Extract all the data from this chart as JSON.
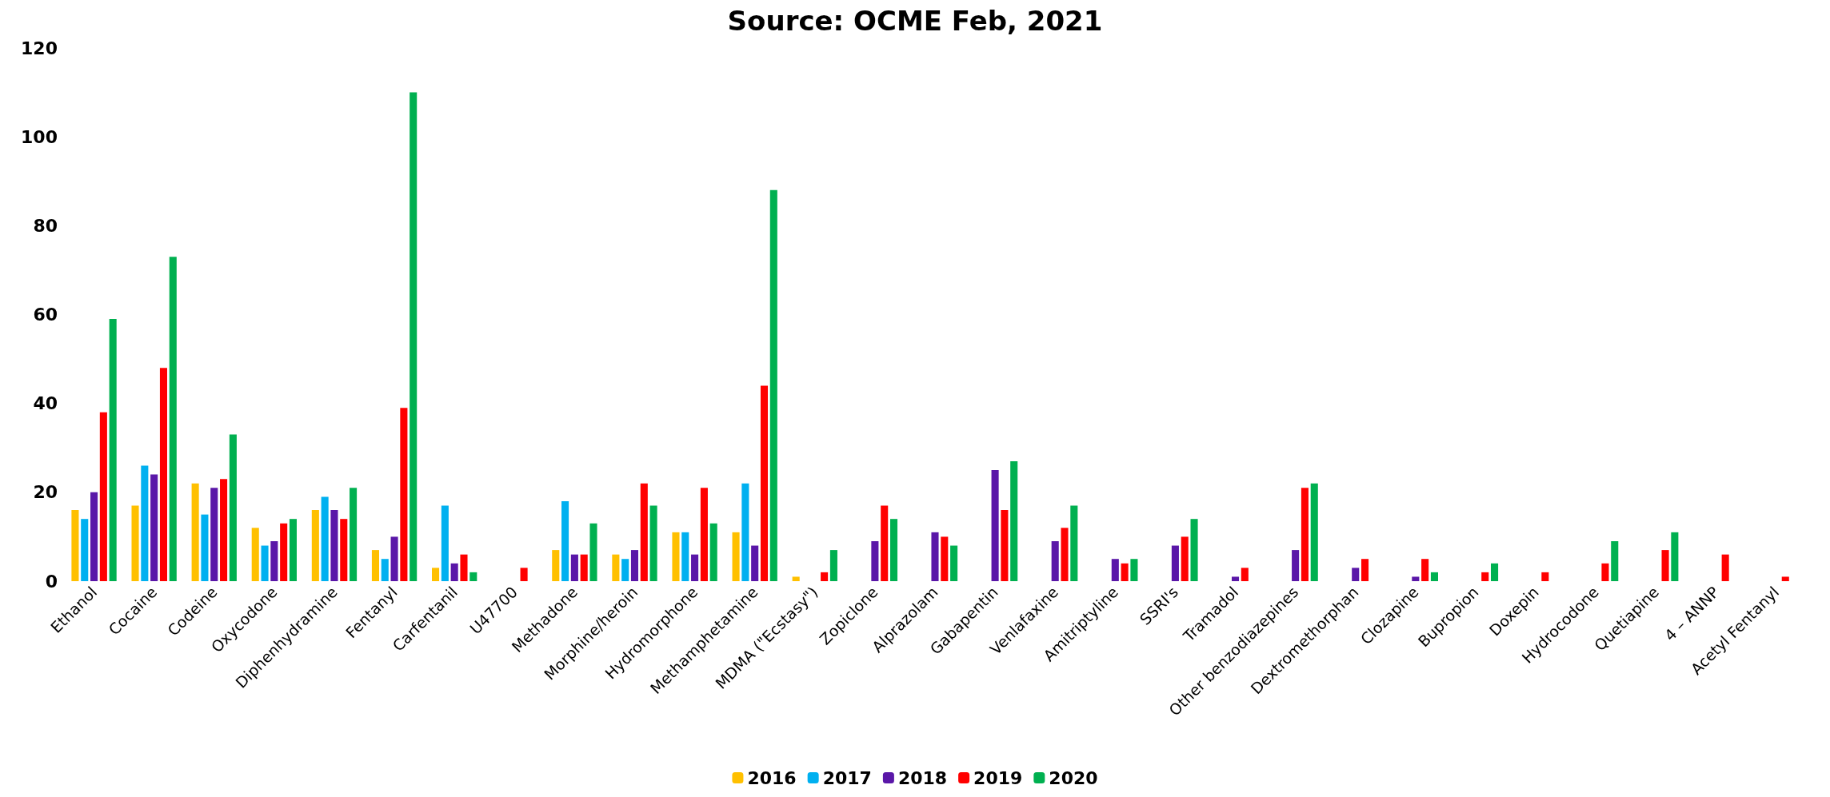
{
  "chart_data": {
    "type": "bar",
    "title": "Source: OCME Feb, 2021",
    "categories": [
      "Ethanol",
      "Cocaine",
      "Codeine",
      "Oxycodone",
      "Diphenhydramine",
      "Fentanyl",
      "Carfentanil",
      "U47700",
      "Methadone",
      "Morphine/heroin",
      "Hydromorphone",
      "Methamphetamine",
      "MDMA (\"Ecstasy\")",
      "Zopiclone",
      "Alprazolam",
      "Gabapentin",
      "Venlafaxine",
      "Amitriptyline",
      "SSRI's",
      "Tramadol",
      "Other benzodiazepines",
      "Dextromethorphan",
      "Clozapine",
      "Bupropion",
      "Doxepin",
      "Hydrocodone",
      "Quetiapine",
      "4 – ANNP",
      "Acetyl Fentanyl"
    ],
    "series": [
      {
        "name": "2016",
        "color": "#ffc000",
        "values": [
          16,
          17,
          22,
          12,
          16,
          7,
          3,
          null,
          7,
          6,
          11,
          11,
          1,
          null,
          null,
          null,
          null,
          null,
          null,
          null,
          null,
          null,
          null,
          null,
          null,
          null,
          null,
          null,
          null
        ]
      },
      {
        "name": "2017",
        "color": "#00b0f0",
        "values": [
          14,
          26,
          15,
          8,
          19,
          5,
          17,
          null,
          18,
          5,
          11,
          22,
          null,
          null,
          null,
          null,
          null,
          null,
          null,
          null,
          null,
          null,
          null,
          null,
          null,
          null,
          null,
          null,
          null
        ]
      },
      {
        "name": "2018",
        "color": "#5a17a8",
        "values": [
          20,
          24,
          21,
          9,
          16,
          10,
          4,
          null,
          6,
          7,
          6,
          8,
          null,
          9,
          11,
          25,
          9,
          5,
          8,
          1,
          7,
          3,
          1,
          null,
          null,
          null,
          null,
          null,
          null
        ]
      },
      {
        "name": "2019",
        "color": "#ff0000",
        "values": [
          38,
          48,
          23,
          13,
          14,
          39,
          6,
          3,
          6,
          22,
          21,
          44,
          2,
          17,
          10,
          16,
          12,
          4,
          10,
          3,
          21,
          5,
          5,
          2,
          2,
          4,
          7,
          6,
          1
        ]
      },
      {
        "name": "2020",
        "color": "#00b050",
        "values": [
          59,
          73,
          33,
          14,
          21,
          110,
          2,
          null,
          13,
          17,
          13,
          88,
          7,
          14,
          8,
          27,
          17,
          5,
          14,
          null,
          22,
          null,
          2,
          4,
          null,
          9,
          11,
          null,
          null
        ]
      }
    ],
    "ylim": [
      0,
      120
    ],
    "yticks": [
      0,
      20,
      40,
      60,
      80,
      100,
      120
    ],
    "grid": false,
    "legend": "bottom"
  }
}
